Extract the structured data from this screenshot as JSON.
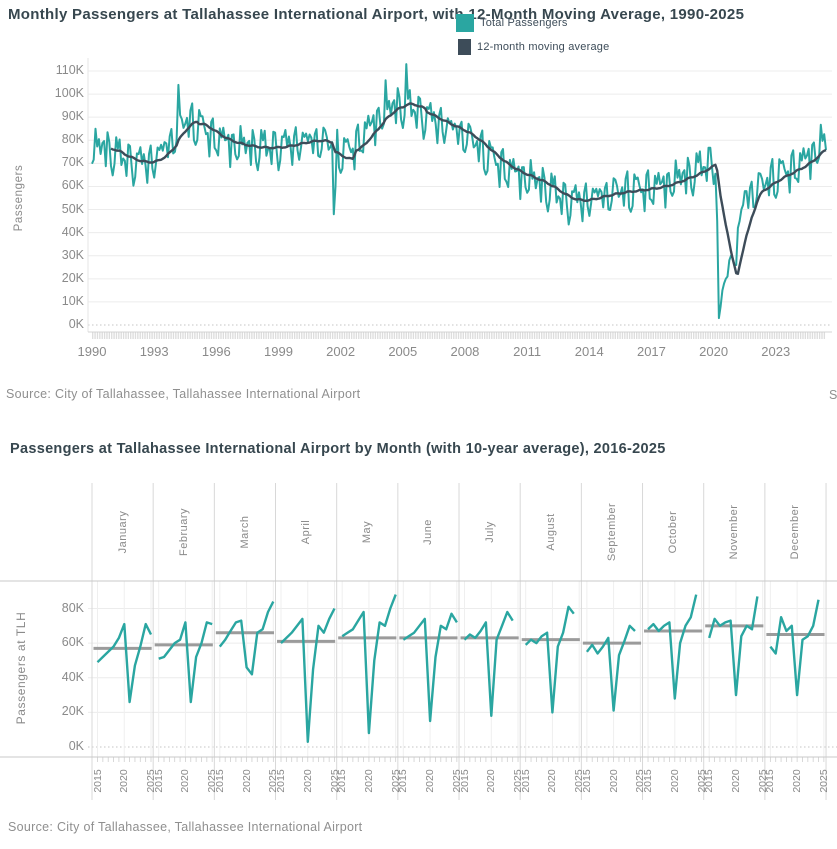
{
  "colors": {
    "teal": "#2aa6a1",
    "slate": "#3d4c59",
    "title": "#37474f",
    "axis_label": "#8a8a8a",
    "grid": "#ececec",
    "separator": "#d8d8d8",
    "zero_line": "#c4c4c4",
    "average_gray": "#9b9b9b",
    "source": "#8f8f8f"
  },
  "top_chart": {
    "title": "Monthly Passengers at Tallahassee International Airport, with 12-Month Moving Average, 1990-2025",
    "legend_total": "Total Passengers",
    "legend_average": "12-month moving average",
    "ylabel": "Passengers",
    "source": "Source: City of Tallahassee, Tallahassee International Airport",
    "clipped_right_text": "S"
  },
  "bottom_chart": {
    "title": "Passengers at Tallahassee International Airport by Month (with 10-year average),  2016-2025",
    "ylabel": "Passengers at TLH",
    "source": "Source: City of Tallahassee, Tallahassee International Airport"
  },
  "chart_data": [
    {
      "type": "line",
      "title": "Monthly Passengers at Tallahassee International Airport, with 12-Month Moving Average, 1990-2025",
      "xlabel": "",
      "ylabel": "Passengers",
      "ylim": [
        0,
        115
      ],
      "x_range_years": [
        1990.0,
        2025.5
      ],
      "x_ticks": [
        1990,
        1993,
        1996,
        1999,
        2002,
        2005,
        2008,
        2011,
        2014,
        2017,
        2020,
        2023
      ],
      "y_ticks": [
        0,
        10,
        20,
        30,
        40,
        50,
        60,
        70,
        80,
        90,
        100,
        110
      ],
      "y_tick_suffix": "K",
      "grid": true,
      "legend_position": "top-center",
      "series": [
        {
          "name": "Total Passengers",
          "color": "#2aa6a1",
          "derive": "monthly_model"
        },
        {
          "name": "12-month moving average",
          "color": "#3d4c59",
          "derive": "trailing_mean_12_of_monthly_model"
        }
      ],
      "units": "thousands of passengers per month",
      "monthly_model": {
        "months_start": "1990-01",
        "months_count": 426,
        "trend_keypoints": [
          [
            1990.0,
            76
          ],
          [
            1990.6,
            77
          ],
          [
            1991.3,
            73
          ],
          [
            1992.2,
            70
          ],
          [
            1993.0,
            71
          ],
          [
            1993.8,
            79
          ],
          [
            1994.5,
            88
          ],
          [
            1995.1,
            87
          ],
          [
            1995.8,
            82
          ],
          [
            1996.5,
            79
          ],
          [
            1997.5,
            77
          ],
          [
            1998.5,
            76.5
          ],
          [
            1999.3,
            77.5
          ],
          [
            2000.2,
            79.5
          ],
          [
            2001.0,
            80
          ],
          [
            2001.7,
            77
          ],
          [
            2002.2,
            74
          ],
          [
            2002.7,
            77
          ],
          [
            2003.3,
            84
          ],
          [
            2004.0,
            91
          ],
          [
            2004.7,
            95
          ],
          [
            2005.2,
            95
          ],
          [
            2006.0,
            91
          ],
          [
            2006.9,
            87
          ],
          [
            2007.9,
            83
          ],
          [
            2008.6,
            78
          ],
          [
            2009.3,
            72
          ],
          [
            2010.1,
            67
          ],
          [
            2010.9,
            64
          ],
          [
            2011.7,
            61
          ],
          [
            2012.5,
            56
          ],
          [
            2013.1,
            53.5
          ],
          [
            2013.7,
            54
          ],
          [
            2014.5,
            56
          ],
          [
            2015.4,
            57.5
          ],
          [
            2016.4,
            58.5
          ],
          [
            2017.4,
            60
          ],
          [
            2018.3,
            63
          ],
          [
            2019.1,
            66
          ],
          [
            2019.8,
            70
          ],
          [
            2020.2,
            72
          ],
          [
            2021.7,
            56
          ],
          [
            2022.3,
            60
          ],
          [
            2023.0,
            64
          ],
          [
            2023.7,
            67
          ],
          [
            2024.3,
            70
          ],
          [
            2024.9,
            75
          ],
          [
            2025.3,
            79
          ],
          [
            2025.6,
            78
          ]
        ],
        "seasonal_by_month": [
          -8,
          -5,
          6,
          3,
          5,
          -1,
          1,
          1,
          -8,
          5,
          6,
          -5
        ],
        "texture": [
          1.8,
          -2.2,
          0.9,
          2.6,
          -1.7,
          0.4,
          -1.1
        ],
        "overrides": {
          "1994-03": 104,
          "2001-09": 48,
          "2001-10": 60,
          "2004-03": 106,
          "2005-03": 113,
          "2020-03": 45,
          "2020-04": 3,
          "2020-05": 8,
          "2020-06": 15,
          "2020-07": 18,
          "2020-08": 20,
          "2020-09": 21,
          "2020-10": 28,
          "2020-11": 30,
          "2020-12": 29,
          "2021-01": 26,
          "2021-02": 26,
          "2021-03": 42,
          "2021-04": 45,
          "2021-05": 50,
          "2021-06": 52,
          "2021-07": 58,
          "2021-08": 58
        }
      }
    },
    {
      "type": "line",
      "title": "Passengers at Tallahassee International Airport by Month (with 10-year average),  2016-2025",
      "ylabel": "Passengers at TLH",
      "ylim": [
        0,
        88
      ],
      "y_ticks": [
        0,
        20,
        40,
        60,
        80
      ],
      "y_tick_suffix": "K",
      "x_ticks": [
        2015,
        2020,
        2025
      ],
      "grid": true,
      "small_multiples": true,
      "units": "thousands of passengers",
      "panels": [
        {
          "month": "January",
          "start_year": 2015,
          "values": [
            49,
            52,
            55,
            58,
            63,
            71,
            26,
            47,
            58,
            71,
            65
          ],
          "average": 57
        },
        {
          "month": "February",
          "start_year": 2015,
          "values": [
            51,
            52,
            56,
            60,
            62,
            72,
            26,
            52,
            60,
            72,
            71
          ],
          "average": 59
        },
        {
          "month": "March",
          "start_year": 2015,
          "values": [
            58,
            62,
            67,
            72,
            73,
            46,
            42,
            66,
            68,
            78,
            84
          ],
          "average": 66
        },
        {
          "month": "April",
          "start_year": 2015,
          "values": [
            60,
            63,
            66,
            70,
            74,
            3,
            45,
            70,
            66,
            74,
            80
          ],
          "average": 61
        },
        {
          "month": "May",
          "start_year": 2015,
          "values": [
            64,
            66,
            68,
            73,
            78,
            8,
            50,
            72,
            70,
            80,
            88
          ],
          "average": 63
        },
        {
          "month": "June",
          "start_year": 2015,
          "values": [
            62,
            64,
            66,
            70,
            74,
            15,
            52,
            70,
            68,
            77,
            72
          ],
          "average": 63
        },
        {
          "month": "July",
          "start_year": 2015,
          "values": [
            62,
            65,
            63,
            67,
            72,
            18,
            62,
            70,
            78,
            73
          ],
          "average": 63
        },
        {
          "month": "August",
          "start_year": 2015,
          "values": [
            59,
            62,
            60,
            64,
            66,
            20,
            58,
            66,
            81,
            77
          ],
          "average": 62
        },
        {
          "month": "September",
          "start_year": 2015,
          "values": [
            55,
            59,
            54,
            58,
            63,
            21,
            53,
            61,
            70,
            67
          ],
          "average": 60
        },
        {
          "month": "October",
          "start_year": 2015,
          "values": [
            68,
            71,
            67,
            70,
            72,
            28,
            60,
            70,
            75,
            88
          ],
          "average": 67
        },
        {
          "month": "November",
          "start_year": 2015,
          "values": [
            63,
            74,
            70,
            72,
            73,
            30,
            64,
            70,
            68,
            87
          ],
          "average": 70
        },
        {
          "month": "December",
          "start_year": 2015,
          "values": [
            58,
            54,
            75,
            67,
            70,
            30,
            62,
            64,
            70,
            85
          ],
          "average": 65
        }
      ]
    }
  ]
}
